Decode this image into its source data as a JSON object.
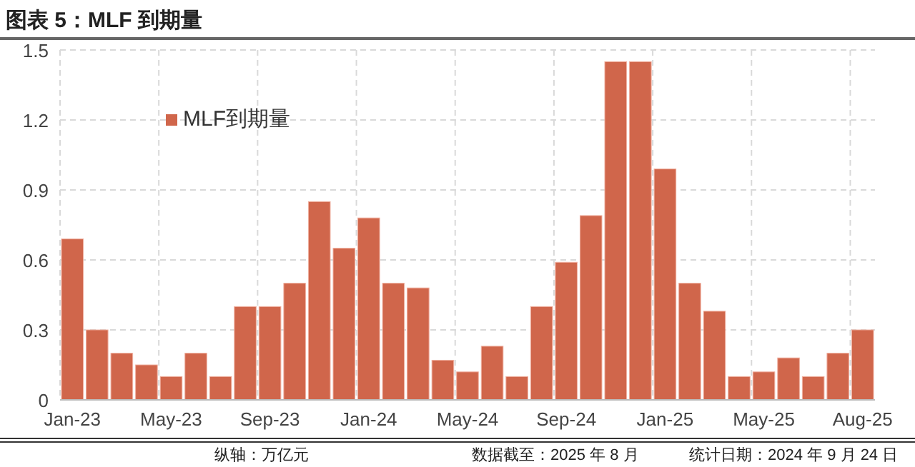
{
  "chart_data": {
    "type": "bar",
    "title": "图表 5：MLF 到期量",
    "categories": [
      "Jan-23",
      null,
      null,
      null,
      "May-23",
      null,
      null,
      null,
      "Sep-23",
      null,
      null,
      null,
      "Jan-24",
      null,
      null,
      null,
      "May-24",
      null,
      null,
      null,
      "Sep-24",
      null,
      null,
      null,
      "Jan-25",
      null,
      null,
      null,
      "May-25",
      null,
      null,
      null,
      "Aug-25"
    ],
    "series": [
      {
        "name": "MLF到期量",
        "color": "#d0664b",
        "values": [
          0.69,
          0.3,
          0.2,
          0.15,
          0.1,
          0.2,
          0.1,
          0.4,
          0.4,
          0.5,
          0.85,
          0.65,
          0.78,
          0.5,
          0.48,
          0.17,
          0.12,
          0.23,
          0.1,
          0.4,
          0.59,
          0.79,
          1.45,
          1.45,
          0.99,
          0.5,
          0.38,
          0.1,
          0.12,
          0.18,
          0.1,
          0.2,
          0.3
        ]
      }
    ],
    "ylim": [
      0,
      1.5
    ],
    "yticks": [
      0,
      0.3,
      0.6,
      0.9,
      1.2,
      1.5
    ],
    "grid": true,
    "legend": "top left",
    "annotations": [
      "纵轴：万亿元",
      "数据截至：2025 年 8 月",
      "统计日期：2024 年 9 月 24 日"
    ]
  }
}
